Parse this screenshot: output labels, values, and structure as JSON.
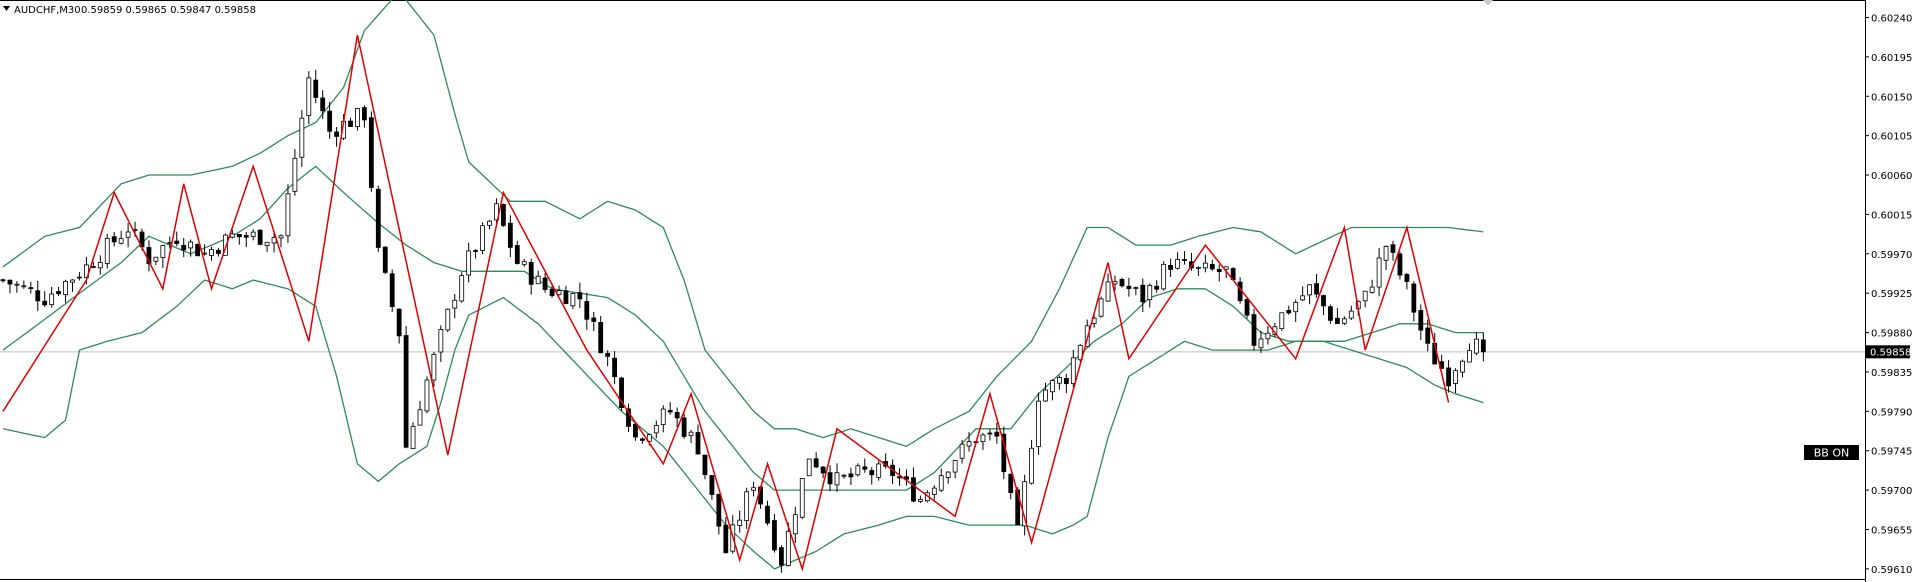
{
  "header": {
    "symbol": "AUDCHF,M30",
    "ohlc": "0.59859 0.59865 0.59847 0.59858"
  },
  "badge": {
    "label": "BB ON"
  },
  "current_price_label": "0.59858",
  "colors": {
    "background": "#ffffff",
    "axis": "#000000",
    "candle_bull_fill": "#ffffff",
    "candle_bear_fill": "#000000",
    "candle_outline": "#000000",
    "bollinger": "#2e8b57",
    "zigzag": "#e00000",
    "price_line": "#c0c0c0",
    "badge_bg": "#000000"
  },
  "chart_data": {
    "type": "candlestick",
    "title": "AUDCHF,M30",
    "ylim": [
      0.59595,
      0.6026
    ],
    "y_ticks": [
      "0.60240",
      "0.60195",
      "0.60150",
      "0.60105",
      "0.60060",
      "0.60015",
      "0.59970",
      "0.59925",
      "0.59880",
      "0.59835",
      "0.59790",
      "0.59745",
      "0.59700",
      "0.59655",
      "0.59610"
    ],
    "current_price": 0.59858,
    "grid": false,
    "candle_count": 214,
    "anchor_closes": [
      [
        0,
        0.5994
      ],
      [
        6,
        0.5992
      ],
      [
        12,
        0.59955
      ],
      [
        18,
        0.6
      ],
      [
        21,
        0.59965
      ],
      [
        25,
        0.5999
      ],
      [
        29,
        0.5997
      ],
      [
        33,
        0.5999
      ],
      [
        40,
        0.5999
      ],
      [
        44,
        0.6017
      ],
      [
        47,
        0.6011
      ],
      [
        52,
        0.6013
      ],
      [
        54,
        0.5997
      ],
      [
        57,
        0.5988
      ],
      [
        58,
        0.5975
      ],
      [
        62,
        0.5985
      ],
      [
        66,
        0.5995
      ],
      [
        71,
        0.6002
      ],
      [
        74,
        0.5996
      ],
      [
        78,
        0.5993
      ],
      [
        83,
        0.5992
      ],
      [
        87,
        0.5985
      ],
      [
        91,
        0.5976
      ],
      [
        96,
        0.5979
      ],
      [
        100,
        0.5975
      ],
      [
        104,
        0.5963
      ],
      [
        108,
        0.5971
      ],
      [
        112,
        0.5962
      ],
      [
        116,
        0.5974
      ],
      [
        120,
        0.5971
      ],
      [
        124,
        0.5972
      ],
      [
        128,
        0.5972
      ],
      [
        132,
        0.5969
      ],
      [
        136,
        0.5973
      ],
      [
        140,
        0.5976
      ],
      [
        143,
        0.5976
      ],
      [
        146,
        0.5965
      ],
      [
        149,
        0.5981
      ],
      [
        153,
        0.5983
      ],
      [
        156,
        0.5989
      ],
      [
        160,
        0.5994
      ],
      [
        164,
        0.5992
      ],
      [
        168,
        0.5996
      ],
      [
        172,
        0.5995
      ],
      [
        176,
        0.5995
      ],
      [
        180,
        0.5987
      ],
      [
        184,
        0.599
      ],
      [
        188,
        0.5993
      ],
      [
        192,
        0.5989
      ],
      [
        196,
        0.5992
      ],
      [
        199,
        0.5998
      ],
      [
        202,
        0.5993
      ],
      [
        205,
        0.5986
      ],
      [
        208,
        0.5983
      ],
      [
        211,
        0.5987
      ],
      [
        213,
        0.59858
      ]
    ],
    "bollinger_bands": {
      "period_note": "",
      "upper": [
        [
          0,
          0.59955
        ],
        [
          6,
          0.5999
        ],
        [
          11,
          0.6
        ],
        [
          17,
          0.6005
        ],
        [
          21,
          0.6006
        ],
        [
          27,
          0.6006
        ],
        [
          33,
          0.6007
        ],
        [
          37,
          0.60085
        ],
        [
          41,
          0.60105
        ],
        [
          45,
          0.6012
        ],
        [
          49,
          0.6016
        ],
        [
          52,
          0.60225
        ],
        [
          57,
          0.6027
        ],
        [
          62,
          0.6022
        ],
        [
          65,
          0.6013
        ],
        [
          67,
          0.60075
        ],
        [
          73,
          0.6003
        ],
        [
          78,
          0.6003
        ],
        [
          83,
          0.6001
        ],
        [
          87,
          0.6003
        ],
        [
          91,
          0.6002
        ],
        [
          95,
          0.6
        ],
        [
          98,
          0.5994
        ],
        [
          101,
          0.5986
        ],
        [
          105,
          0.5982
        ],
        [
          108,
          0.5979
        ],
        [
          111,
          0.5977
        ],
        [
          114,
          0.5977
        ],
        [
          118,
          0.5976
        ],
        [
          122,
          0.5977
        ],
        [
          126,
          0.5976
        ],
        [
          130,
          0.5975
        ],
        [
          134,
          0.5977
        ],
        [
          139,
          0.5979
        ],
        [
          143,
          0.5983
        ],
        [
          148,
          0.5987
        ],
        [
          152,
          0.5993
        ],
        [
          156,
          0.6
        ],
        [
          159,
          0.6
        ],
        [
          163,
          0.5998
        ],
        [
          168,
          0.5998
        ],
        [
          172,
          0.5999
        ],
        [
          177,
          0.6
        ],
        [
          181,
          0.59995
        ],
        [
          186,
          0.5997
        ],
        [
          190,
          0.59985
        ],
        [
          194,
          0.6
        ],
        [
          198,
          0.6
        ],
        [
          203,
          0.6
        ],
        [
          208,
          0.6
        ],
        [
          213,
          0.59995
        ]
      ],
      "middle": [
        [
          0,
          0.5986
        ],
        [
          6,
          0.59895
        ],
        [
          11,
          0.59925
        ],
        [
          17,
          0.5996
        ],
        [
          21,
          0.5999
        ],
        [
          27,
          0.5997
        ],
        [
          33,
          0.5999
        ],
        [
          37,
          0.6001
        ],
        [
          41,
          0.60045
        ],
        [
          45,
          0.6007
        ],
        [
          49,
          0.6004
        ],
        [
          54,
          0.60005
        ],
        [
          58,
          0.5998
        ],
        [
          62,
          0.5996
        ],
        [
          66,
          0.5995
        ],
        [
          70,
          0.5995
        ],
        [
          75,
          0.5995
        ],
        [
          79,
          0.5993
        ],
        [
          83,
          0.59925
        ],
        [
          87,
          0.5992
        ],
        [
          91,
          0.599
        ],
        [
          95,
          0.5987
        ],
        [
          98,
          0.5983
        ],
        [
          101,
          0.5979
        ],
        [
          105,
          0.5975
        ],
        [
          108,
          0.5972
        ],
        [
          111,
          0.597
        ],
        [
          115,
          0.597
        ],
        [
          120,
          0.597
        ],
        [
          126,
          0.597
        ],
        [
          130,
          0.597
        ],
        [
          134,
          0.5972
        ],
        [
          140,
          0.5977
        ],
        [
          145,
          0.5977
        ],
        [
          149,
          0.5981
        ],
        [
          153,
          0.5984
        ],
        [
          157,
          0.5987
        ],
        [
          161,
          0.5989
        ],
        [
          165,
          0.5992
        ],
        [
          169,
          0.5993
        ],
        [
          173,
          0.5993
        ],
        [
          177,
          0.5991
        ],
        [
          181,
          0.5988
        ],
        [
          185,
          0.5987
        ],
        [
          189,
          0.5987
        ],
        [
          193,
          0.5987
        ],
        [
          197,
          0.5988
        ],
        [
          201,
          0.5989
        ],
        [
          205,
          0.5989
        ],
        [
          209,
          0.5988
        ],
        [
          213,
          0.5988
        ]
      ],
      "lower": [
        [
          0,
          0.5977
        ],
        [
          6,
          0.5976
        ],
        [
          9,
          0.5978
        ],
        [
          11,
          0.5986
        ],
        [
          15,
          0.5987
        ],
        [
          20,
          0.5988
        ],
        [
          25,
          0.5991
        ],
        [
          29,
          0.5994
        ],
        [
          33,
          0.5993
        ],
        [
          36,
          0.5994
        ],
        [
          41,
          0.5993
        ],
        [
          45,
          0.5991
        ],
        [
          48,
          0.5983
        ],
        [
          51,
          0.5973
        ],
        [
          54,
          0.5971
        ],
        [
          57,
          0.5973
        ],
        [
          61,
          0.5975
        ],
        [
          63,
          0.598
        ],
        [
          65,
          0.5986
        ],
        [
          67,
          0.599
        ],
        [
          72,
          0.5992
        ],
        [
          77,
          0.5989
        ],
        [
          83,
          0.5984
        ],
        [
          89,
          0.5979
        ],
        [
          95,
          0.5975
        ],
        [
          99,
          0.5971
        ],
        [
          104,
          0.5966
        ],
        [
          108,
          0.5963
        ],
        [
          111,
          0.5961
        ],
        [
          114,
          0.5962
        ],
        [
          117,
          0.5963
        ],
        [
          121,
          0.5965
        ],
        [
          126,
          0.5966
        ],
        [
          130,
          0.5967
        ],
        [
          134,
          0.5967
        ],
        [
          139,
          0.5966
        ],
        [
          143,
          0.5966
        ],
        [
          147,
          0.5966
        ],
        [
          151,
          0.5965
        ],
        [
          154,
          0.5966
        ],
        [
          156,
          0.5967
        ],
        [
          159,
          0.5976
        ],
        [
          162,
          0.5983
        ],
        [
          166,
          0.5985
        ],
        [
          170,
          0.5987
        ],
        [
          174,
          0.5986
        ],
        [
          178,
          0.5986
        ],
        [
          182,
          0.5986
        ],
        [
          186,
          0.5987
        ],
        [
          190,
          0.5987
        ],
        [
          194,
          0.5986
        ],
        [
          198,
          0.5985
        ],
        [
          202,
          0.5984
        ],
        [
          206,
          0.5982
        ],
        [
          209,
          0.5981
        ],
        [
          213,
          0.598
        ]
      ]
    },
    "zigzag": [
      [
        0,
        0.5979
      ],
      [
        12,
        0.5994
      ],
      [
        16,
        0.6004
      ],
      [
        23,
        0.5993
      ],
      [
        26,
        0.6005
      ],
      [
        30,
        0.5993
      ],
      [
        36,
        0.6007
      ],
      [
        44,
        0.5987
      ],
      [
        51,
        0.6022
      ],
      [
        64,
        0.5974
      ],
      [
        72,
        0.6004
      ],
      [
        84,
        0.5986
      ],
      [
        95,
        0.5973
      ],
      [
        99,
        0.5981
      ],
      [
        106,
        0.5962
      ],
      [
        110,
        0.5973
      ],
      [
        115,
        0.5961
      ],
      [
        120,
        0.5977
      ],
      [
        137,
        0.5967
      ],
      [
        142,
        0.5981
      ],
      [
        148,
        0.5964
      ],
      [
        159,
        0.5996
      ],
      [
        162,
        0.5985
      ],
      [
        173,
        0.5998
      ],
      [
        186,
        0.5985
      ],
      [
        193,
        0.6
      ],
      [
        196,
        0.5986
      ],
      [
        202,
        0.6
      ],
      [
        208,
        0.598
      ]
    ]
  }
}
